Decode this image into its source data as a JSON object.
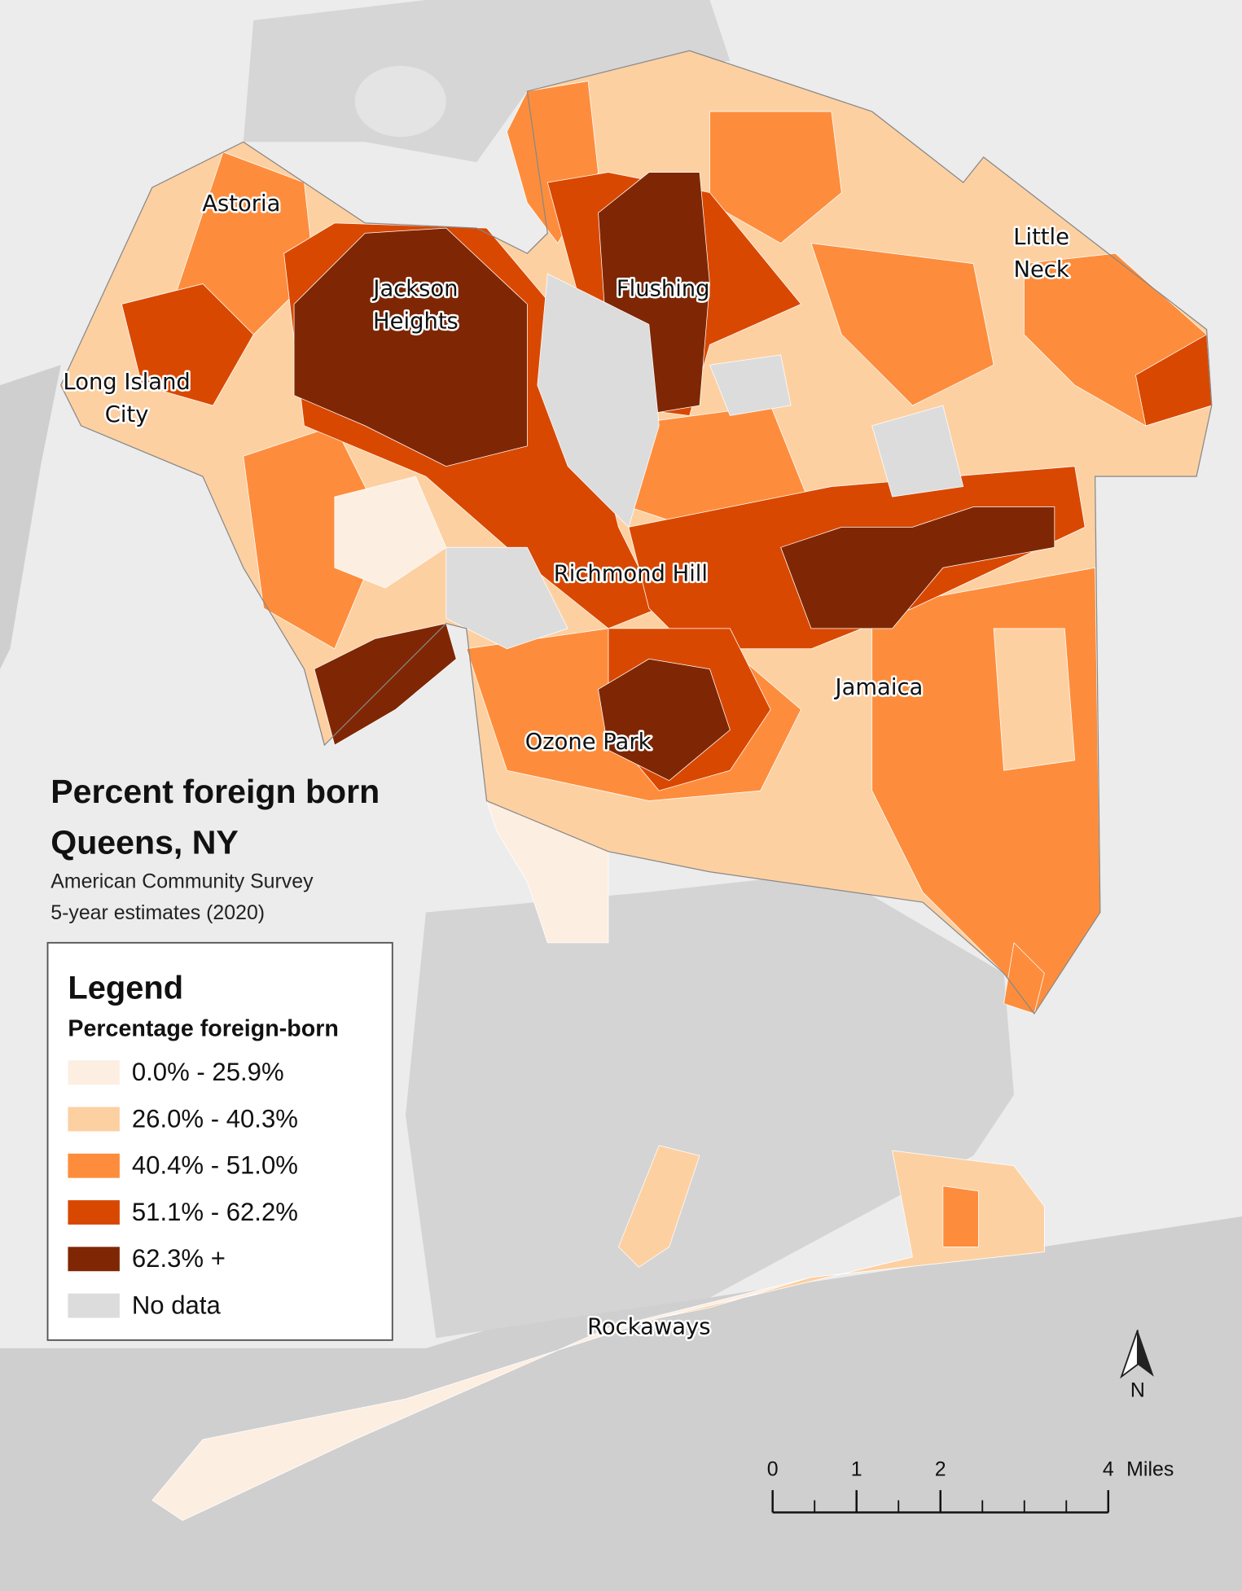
{
  "title": "Percent foreign born",
  "subtitle": "Queens, NY",
  "source": [
    "American Community Survey",
    "5-year estimates (2020)"
  ],
  "legend": {
    "title": "Legend",
    "subtitle": "Percentage foreign-born",
    "items": [
      {
        "label": "0.0% - 25.9%",
        "color": "#fdeee2"
      },
      {
        "label": "26.0% - 40.3%",
        "color": "#fdd0a2"
      },
      {
        "label": "40.4% - 51.0%",
        "color": "#fd8d3c"
      },
      {
        "label": "51.1% - 62.2%",
        "color": "#d94801"
      },
      {
        "label": "62.3% +",
        "color": "#7f2704"
      },
      {
        "label": "No data",
        "color": "#dcdcdc"
      }
    ]
  },
  "places": [
    {
      "lines": [
        "Astoria"
      ]
    },
    {
      "lines": [
        "Jackson",
        "Heights"
      ]
    },
    {
      "lines": [
        "Flushing"
      ]
    },
    {
      "lines": [
        "Little",
        "Neck"
      ]
    },
    {
      "lines": [
        "Long Island",
        "City"
      ]
    },
    {
      "lines": [
        "Richmond Hill"
      ]
    },
    {
      "lines": [
        "Jamaica"
      ]
    },
    {
      "lines": [
        "Ozone Park"
      ]
    },
    {
      "lines": [
        "Rockaways"
      ]
    }
  ],
  "scale_bar": {
    "ticks": [
      0,
      1,
      2,
      4
    ],
    "unit": "Miles"
  },
  "north_arrow": "N"
}
